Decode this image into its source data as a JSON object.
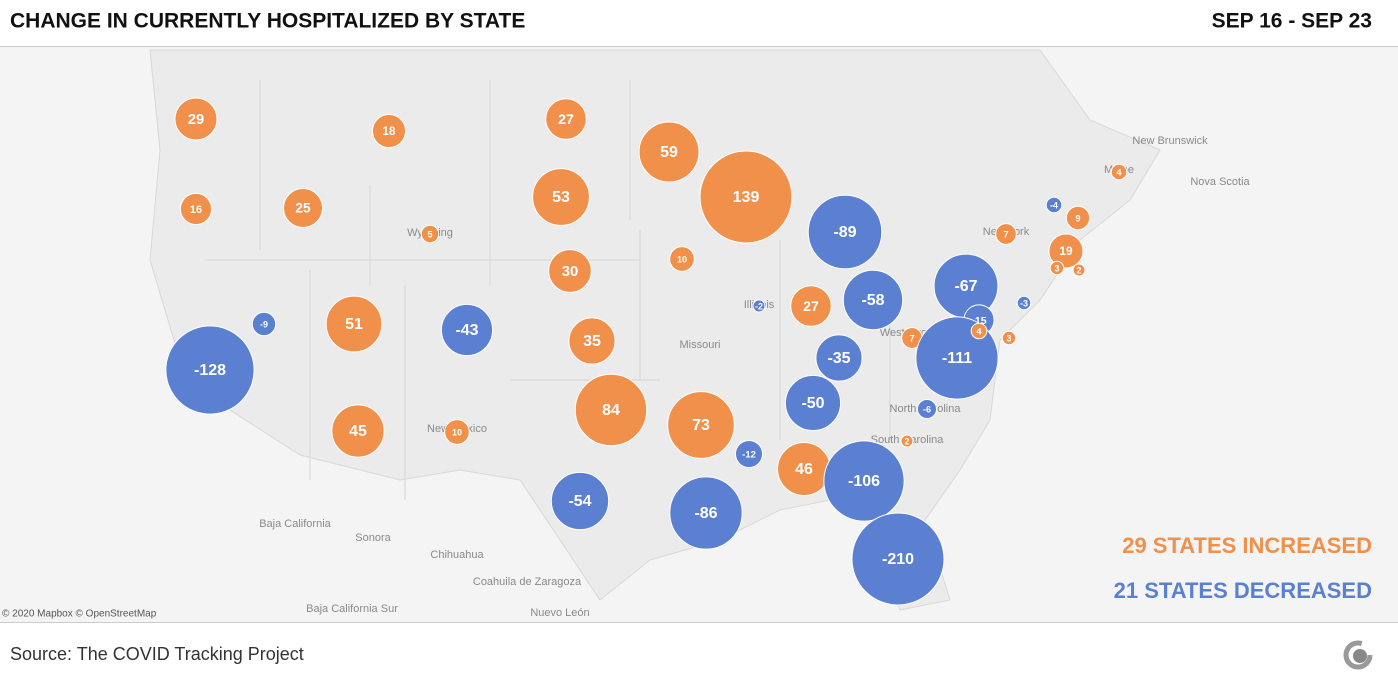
{
  "chart_data": {
    "type": "bubble-map",
    "title": "CHANGE IN CURRENTLY HOSPITALIZED BY STATE",
    "subtitle": "SEP 16 - SEP 23",
    "values": [
      29,
      18,
      27,
      59,
      139,
      -89,
      16,
      25,
      5,
      53,
      10,
      30,
      -9,
      51,
      -43,
      35,
      -2,
      27,
      -58,
      -67,
      -15,
      -3,
      -128,
      -35,
      7,
      -111,
      3,
      4,
      45,
      10,
      84,
      73,
      -50,
      -6,
      2,
      -12,
      46,
      -106,
      -54,
      -86,
      -210,
      7,
      -4,
      9,
      19,
      3,
      2,
      4
    ],
    "increase_color": "#f0904a",
    "decrease_color": "#5b80d1",
    "annotations": [
      "29 STATES INCREASED",
      "21 STATES DECREASED"
    ],
    "map_labels": [
      "New Brunswick",
      "Nova Scotia",
      "Baja California",
      "Sonora",
      "Chihuahua",
      "Coahuila de Zaragoza",
      "Baja California Sur",
      "Nuevo León",
      "Missouri",
      "Illinois",
      "West Virginia",
      "North Carolina",
      "South Carolina",
      "New Mexico",
      "Wyoming",
      "New York",
      "Maine"
    ],
    "attribution": "© 2020 Mapbox © OpenStreetMap",
    "source": "Source: The COVID Tracking Project"
  }
}
